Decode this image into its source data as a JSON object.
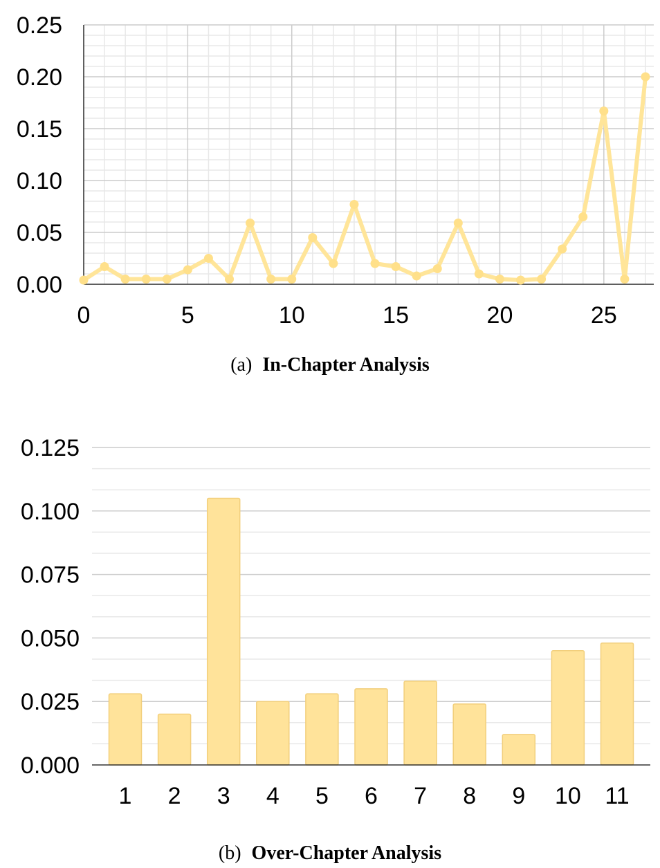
{
  "colors": {
    "series": "#FFE599",
    "series_marker": "#FFE08A",
    "bar_fill": "#FFE39A",
    "bar_stroke": "#F2CF7C",
    "grid_major": "#CCCCCC",
    "grid_minor": "#E8E8E8",
    "axis": "#333333"
  },
  "chart_data": [
    {
      "type": "line",
      "caption_prefix": "(a)",
      "caption_title": "In-Chapter Analysis",
      "x": [
        0,
        1,
        2,
        3,
        4,
        5,
        6,
        7,
        8,
        9,
        10,
        11,
        12,
        13,
        14,
        15,
        16,
        17,
        18,
        19,
        20,
        21,
        22,
        23,
        24,
        25,
        26,
        27
      ],
      "series": [
        {
          "values": [
            0.004,
            0.017,
            0.005,
            0.005,
            0.005,
            0.014,
            0.025,
            0.005,
            0.059,
            0.005,
            0.005,
            0.045,
            0.02,
            0.077,
            0.02,
            0.017,
            0.008,
            0.015,
            0.059,
            0.01,
            0.005,
            0.004,
            0.005,
            0.034,
            0.065,
            0.167,
            0.005,
            0.2
          ]
        }
      ],
      "xlim": [
        0,
        27.4
      ],
      "ylim": [
        0,
        0.25
      ],
      "x_ticks": [
        0,
        5,
        10,
        15,
        20,
        25
      ],
      "x_tick_labels": [
        "0",
        "5",
        "10",
        "15",
        "20",
        "25"
      ],
      "y_ticks": [
        0,
        0.05,
        0.1,
        0.15,
        0.2,
        0.25
      ],
      "y_tick_labels": [
        "0.00",
        "0.05",
        "0.10",
        "0.15",
        "0.20",
        "0.25"
      ],
      "x_minor_step": 1,
      "y_minor_step": 0.01,
      "grid": true
    },
    {
      "type": "bar",
      "caption_prefix": "(b)",
      "caption_title": "Over-Chapter Analysis",
      "categories": [
        "1",
        "2",
        "3",
        "4",
        "5",
        "6",
        "7",
        "8",
        "9",
        "10",
        "11"
      ],
      "values": [
        0.028,
        0.02,
        0.105,
        0.025,
        0.028,
        0.03,
        0.033,
        0.024,
        0.012,
        0.045,
        0.048
      ],
      "ylim": [
        0,
        0.125
      ],
      "y_ticks": [
        0,
        0.025,
        0.05,
        0.075,
        0.1,
        0.125
      ],
      "y_tick_labels": [
        "0.000",
        "0.025",
        "0.050",
        "0.075",
        "0.100",
        "0.125"
      ],
      "y_minor_step": 0.00833,
      "grid": true
    }
  ]
}
